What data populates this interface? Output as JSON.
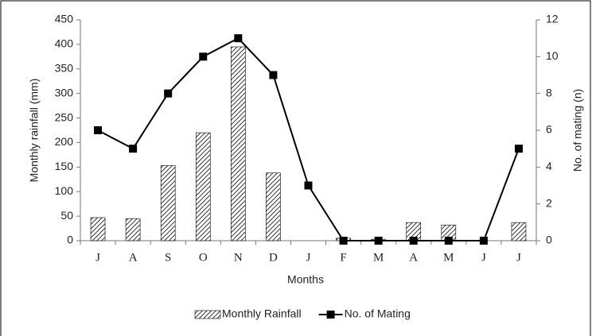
{
  "chart_data": {
    "type": "bar",
    "x_label": "Months",
    "y_label": "Monthly rainfall (mm)",
    "y2_label": "No. of mating (n)",
    "categories": [
      "J",
      "A",
      "S",
      "O",
      "N",
      "D",
      "J",
      "F",
      "M",
      "A",
      "M",
      "J",
      "J"
    ],
    "series": [
      {
        "name": "Monthly Rainfall",
        "type": "bar",
        "color": "#000000",
        "values": [
          47,
          45,
          153,
          220,
          395,
          138,
          0,
          5,
          3,
          37,
          32,
          0,
          37
        ]
      },
      {
        "name": "No. of Mating",
        "type": "line",
        "axis": "y2",
        "color": "#000000",
        "values": [
          6,
          5,
          8,
          10,
          11,
          9,
          3,
          0,
          0,
          0,
          0,
          0,
          5
        ]
      }
    ],
    "ylim": [
      0,
      450
    ],
    "yticks": [
      0,
      50,
      100,
      150,
      200,
      250,
      300,
      350,
      400,
      450
    ],
    "y2lim": [
      0,
      12
    ],
    "y2ticks": [
      0,
      2,
      4,
      6,
      8,
      10,
      12
    ],
    "grid": false,
    "legend": "bottom"
  }
}
